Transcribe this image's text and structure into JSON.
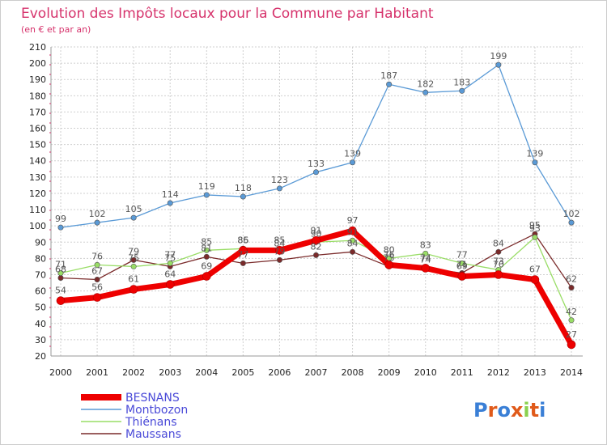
{
  "chart_data": {
    "type": "line",
    "title": "Evolution des Impôts locaux pour la Commune par Habitant",
    "subtitle": "(en € et par an)",
    "xlabel": "",
    "ylabel": "",
    "ylim": [
      20,
      210
    ],
    "yticks": [
      20,
      30,
      40,
      50,
      60,
      70,
      80,
      90,
      100,
      110,
      120,
      130,
      140,
      150,
      160,
      170,
      180,
      190,
      200,
      210
    ],
    "grid": true,
    "legend_position": "bottom-left",
    "categories": [
      "2000",
      "2001",
      "2002",
      "2003",
      "2004",
      "2005",
      "2006",
      "2007",
      "2008",
      "2009",
      "2010",
      "2011",
      "2012",
      "2013",
      "2014"
    ],
    "series": [
      {
        "name": "Maussans",
        "color": "#7a2a2a",
        "values": [
          68,
          67,
          79,
          75,
          81,
          77,
          79,
          82,
          84,
          75,
          74,
          71,
          84,
          95,
          62
        ]
      },
      {
        "name": "Thiénans",
        "color": "#99dd66",
        "values": [
          71,
          76,
          75,
          77,
          85,
          86,
          84,
          90,
          91,
          80,
          83,
          77,
          73,
          93,
          42
        ]
      },
      {
        "name": "Montbozon",
        "color": "#5a9ad6",
        "values": [
          99,
          102,
          105,
          114,
          119,
          118,
          123,
          133,
          139,
          187,
          182,
          183,
          199,
          139,
          102
        ]
      },
      {
        "name": "BESNANS",
        "color": "#ee0000",
        "values": [
          54,
          56,
          61,
          64,
          69,
          85,
          85,
          91,
          97,
          76,
          74,
          69,
          70,
          67,
          27
        ]
      }
    ],
    "legend_order": [
      "BESNANS",
      "Montbozon",
      "Thiénans",
      "Maussans"
    ]
  },
  "logo": {
    "text": "Proxiti"
  }
}
